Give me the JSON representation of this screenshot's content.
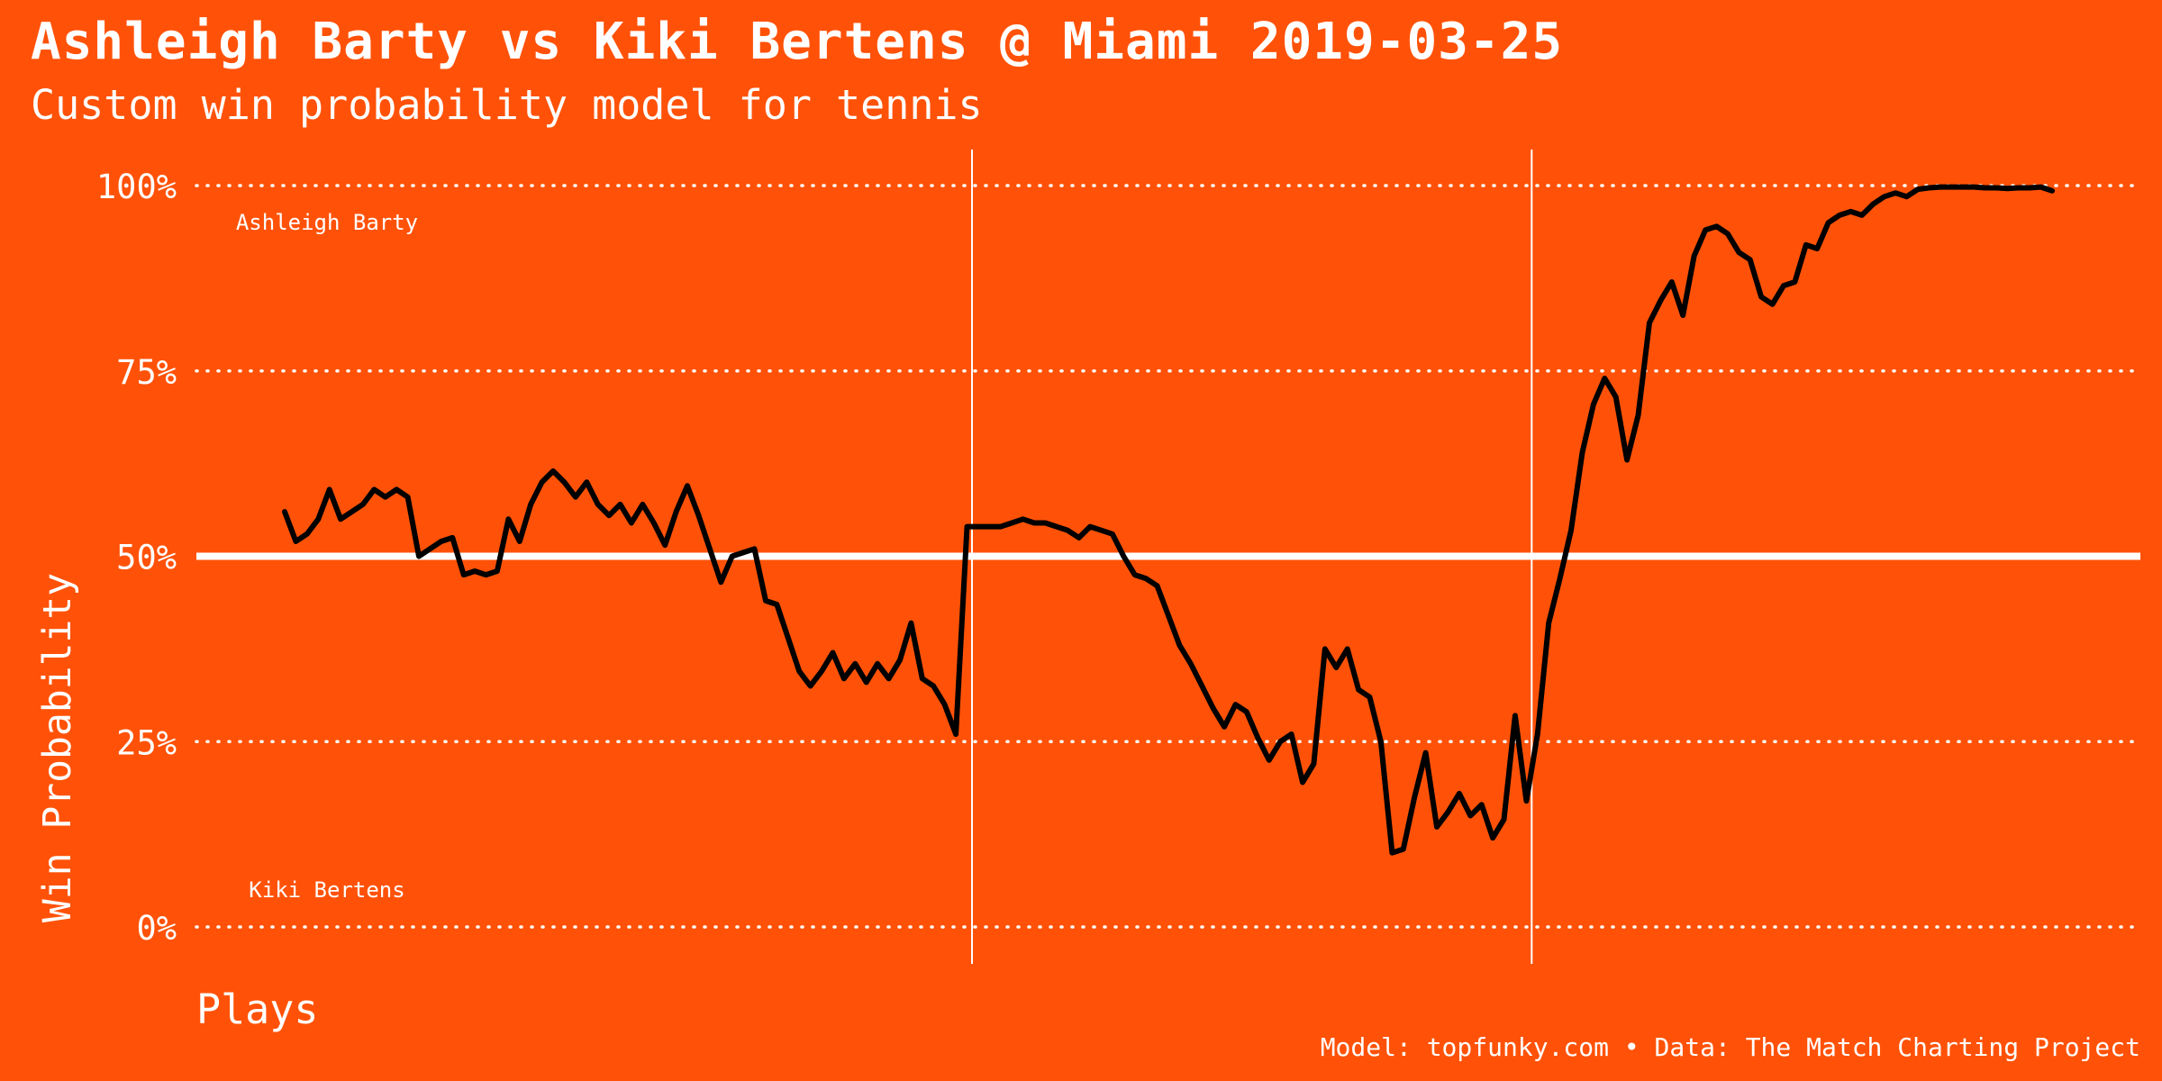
{
  "title": "Ashleigh Barty vs Kiki Bertens @ Miami 2019-03-25",
  "subtitle": "Custom win probability model for tennis",
  "caption": "Model: topfunky.com • Data: The Match Charting Project",
  "colors": {
    "background": "#FF5208",
    "text": "#FFFFFF",
    "line": "#000000",
    "midline": "#FFFFFF"
  },
  "chart_data": {
    "type": "line",
    "xlabel": "Plays",
    "ylabel": "Win Probability",
    "ylim": [
      0,
      1
    ],
    "xlim": [
      0,
      180
    ],
    "y_ticks": [
      {
        "value": 0,
        "label": "0%"
      },
      {
        "value": 0.25,
        "label": "25%"
      },
      {
        "value": 0.5,
        "label": "50%"
      },
      {
        "value": 0.75,
        "label": "75%"
      },
      {
        "value": 1,
        "label": "100%"
      }
    ],
    "grid": "horizontal dotted",
    "reference_line": 0.5,
    "set_boundaries": [
      70,
      127
    ],
    "annotations": [
      {
        "text": "Ashleigh Barty",
        "x": 12,
        "y": 0.95
      },
      {
        "text": "Kiki Bertens",
        "x": 12,
        "y": 0.05
      }
    ],
    "series": [
      {
        "values": [
          0.56,
          0.52,
          0.53,
          0.55,
          0.59,
          0.55,
          0.56,
          0.57,
          0.59,
          0.58,
          0.59,
          0.58,
          0.5,
          0.51,
          0.52,
          0.525,
          0.475,
          0.48,
          0.475,
          0.48,
          0.55,
          0.52,
          0.57,
          0.6,
          0.615,
          0.6,
          0.58,
          0.6,
          0.57,
          0.555,
          0.57,
          0.545,
          0.57,
          0.545,
          0.515,
          0.56,
          0.595,
          0.555,
          0.51,
          0.465,
          0.5,
          0.505,
          0.51,
          0.44,
          0.435,
          0.39,
          0.345,
          0.325,
          0.345,
          0.37,
          0.335,
          0.355,
          0.33,
          0.355,
          0.335,
          0.36,
          0.41,
          0.335,
          0.325,
          0.3,
          0.26,
          0.54,
          0.54,
          0.54,
          0.54,
          0.545,
          0.55,
          0.545,
          0.545,
          0.54,
          0.535,
          0.525,
          0.54,
          0.535,
          0.53,
          0.5,
          0.475,
          0.47,
          0.46,
          0.42,
          0.38,
          0.355,
          0.325,
          0.295,
          0.27,
          0.3,
          0.29,
          0.255,
          0.225,
          0.25,
          0.26,
          0.195,
          0.22,
          0.375,
          0.35,
          0.375,
          0.32,
          0.31,
          0.25,
          0.1,
          0.105,
          0.175,
          0.235,
          0.135,
          0.155,
          0.18,
          0.15,
          0.165,
          0.12,
          0.145,
          0.285,
          0.17,
          0.26,
          0.41,
          0.47,
          0.535,
          0.64,
          0.705,
          0.74,
          0.715,
          0.63,
          0.69,
          0.815,
          0.845,
          0.87,
          0.825,
          0.905,
          0.94,
          0.945,
          0.935,
          0.91,
          0.9,
          0.85,
          0.84,
          0.865,
          0.87,
          0.92,
          0.915,
          0.95,
          0.96,
          0.965,
          0.96,
          0.975,
          0.985,
          0.99,
          0.985,
          0.995,
          0.997,
          0.998,
          0.998,
          0.998,
          0.998,
          0.997,
          0.997,
          0.996,
          0.997,
          0.997,
          0.998,
          0.993
        ]
      }
    ]
  }
}
